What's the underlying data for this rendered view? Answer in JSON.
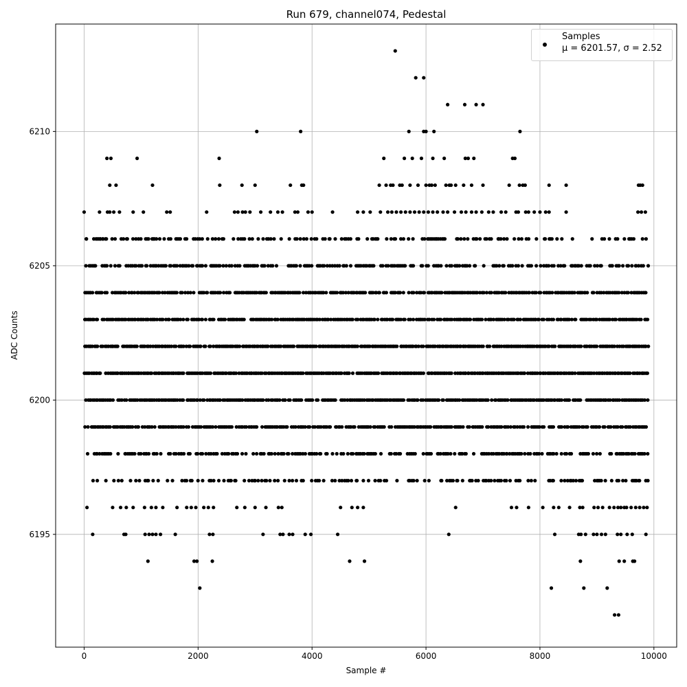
{
  "chart_data": {
    "type": "scatter",
    "title": "Run 679, channel074, Pedestal",
    "xlabel": "Sample #",
    "ylabel": "ADC Counts",
    "xlim": [
      -500,
      10400
    ],
    "ylim": [
      6190.8,
      6214.0
    ],
    "xticks": [
      0,
      2000,
      4000,
      6000,
      8000,
      10000
    ],
    "xtick_labels": [
      "0",
      "2000",
      "4000",
      "6000",
      "8000",
      "10000"
    ],
    "yticks": [
      6195,
      6200,
      6205,
      6210
    ],
    "ytick_labels": [
      "6195",
      "6200",
      "6205",
      "6210"
    ],
    "grid": true,
    "legend": {
      "placement": "top-right",
      "series_name": "Samples",
      "stats_label": "μ = 6201.57, σ = 2.52"
    },
    "marker_color": "#000000",
    "series": [
      {
        "name": "Samples",
        "points": [
          [
            0,
            6207
          ],
          [
            40,
            6206
          ],
          [
            90,
            6205
          ],
          [
            170,
            6206
          ],
          [
            230,
            6206
          ],
          [
            280,
            6206
          ],
          [
            330,
            6206
          ],
          [
            390,
            6206
          ],
          [
            270,
            6207
          ],
          [
            410,
            6207
          ],
          [
            450,
            6207
          ],
          [
            520,
            6207
          ],
          [
            620,
            6207
          ],
          [
            860,
            6207
          ],
          [
            1040,
            6207
          ],
          [
            1450,
            6207
          ],
          [
            1510,
            6207
          ],
          [
            2150,
            6207
          ],
          [
            2640,
            6207
          ],
          [
            2700,
            6207
          ],
          [
            2780,
            6207
          ],
          [
            2830,
            6207
          ],
          [
            2910,
            6207
          ],
          [
            3100,
            6207
          ],
          [
            3270,
            6207
          ],
          [
            3400,
            6207
          ],
          [
            3480,
            6207
          ],
          [
            3700,
            6207
          ],
          [
            3750,
            6207
          ],
          [
            3930,
            6207
          ],
          [
            4000,
            6207
          ],
          [
            4360,
            6207
          ],
          [
            4800,
            6207
          ],
          [
            4900,
            6207
          ],
          [
            5020,
            6207
          ],
          [
            5200,
            6207
          ],
          [
            5330,
            6207
          ],
          [
            5400,
            6207
          ],
          [
            5480,
            6207
          ],
          [
            5560,
            6207
          ],
          [
            5640,
            6207
          ],
          [
            5720,
            6207
          ],
          [
            5800,
            6207
          ],
          [
            5880,
            6207
          ],
          [
            5960,
            6207
          ],
          [
            6040,
            6207
          ],
          [
            6120,
            6207
          ],
          [
            6200,
            6207
          ],
          [
            6300,
            6207
          ],
          [
            6380,
            6207
          ],
          [
            6500,
            6207
          ],
          [
            6620,
            6207
          ],
          [
            6700,
            6207
          ],
          [
            6800,
            6207
          ],
          [
            6880,
            6207
          ],
          [
            6980,
            6207
          ],
          [
            7100,
            6207
          ],
          [
            7180,
            6207
          ],
          [
            7320,
            6207
          ],
          [
            7400,
            6207
          ],
          [
            7580,
            6207
          ],
          [
            7620,
            6207
          ],
          [
            7750,
            6207
          ],
          [
            7800,
            6207
          ],
          [
            7900,
            6207
          ],
          [
            8000,
            6207
          ],
          [
            8100,
            6207
          ],
          [
            8160,
            6207
          ],
          [
            8460,
            6207
          ],
          [
            9720,
            6207
          ],
          [
            9780,
            6207
          ],
          [
            9850,
            6207
          ],
          [
            400,
            6209
          ],
          [
            450,
            6208
          ],
          [
            470,
            6209
          ],
          [
            560,
            6208
          ],
          [
            930,
            6209
          ],
          [
            1200,
            6208
          ],
          [
            2370,
            6209
          ],
          [
            2380,
            6208
          ],
          [
            2770,
            6208
          ],
          [
            3000,
            6208
          ],
          [
            3620,
            6208
          ],
          [
            3820,
            6208
          ],
          [
            3850,
            6208
          ],
          [
            5180,
            6208
          ],
          [
            5260,
            6209
          ],
          [
            5300,
            6208
          ],
          [
            5380,
            6208
          ],
          [
            5420,
            6208
          ],
          [
            5540,
            6208
          ],
          [
            5580,
            6208
          ],
          [
            5620,
            6209
          ],
          [
            5720,
            6208
          ],
          [
            5760,
            6209
          ],
          [
            5860,
            6208
          ],
          [
            5920,
            6209
          ],
          [
            6000,
            6208
          ],
          [
            6060,
            6208
          ],
          [
            6100,
            6208
          ],
          [
            6120,
            6209
          ],
          [
            6160,
            6208
          ],
          [
            6320,
            6209
          ],
          [
            6350,
            6208
          ],
          [
            6410,
            6208
          ],
          [
            6440,
            6208
          ],
          [
            6520,
            6208
          ],
          [
            6660,
            6208
          ],
          [
            6690,
            6209
          ],
          [
            6740,
            6209
          ],
          [
            6800,
            6208
          ],
          [
            6840,
            6209
          ],
          [
            7000,
            6208
          ],
          [
            7460,
            6208
          ],
          [
            7520,
            6209
          ],
          [
            7560,
            6209
          ],
          [
            7640,
            6208
          ],
          [
            7700,
            6208
          ],
          [
            7740,
            6208
          ],
          [
            8160,
            6208
          ],
          [
            8460,
            6208
          ],
          [
            9730,
            6208
          ],
          [
            9760,
            6208
          ],
          [
            9800,
            6208
          ],
          [
            3030,
            6210
          ],
          [
            3800,
            6210
          ],
          [
            5700,
            6210
          ],
          [
            5960,
            6210
          ],
          [
            6000,
            6210
          ],
          [
            6140,
            6210
          ],
          [
            7650,
            6210
          ],
          [
            6380,
            6211
          ],
          [
            6680,
            6211
          ],
          [
            6880,
            6211
          ],
          [
            7000,
            6211
          ],
          [
            5820,
            6212
          ],
          [
            5960,
            6212
          ],
          [
            5460,
            6213
          ],
          [
            50,
            6196
          ],
          [
            500,
            6196
          ],
          [
            640,
            6196
          ],
          [
            740,
            6196
          ],
          [
            860,
            6196
          ],
          [
            1060,
            6196
          ],
          [
            1180,
            6196
          ],
          [
            1260,
            6196
          ],
          [
            1380,
            6196
          ],
          [
            1630,
            6196
          ],
          [
            1800,
            6196
          ],
          [
            1880,
            6196
          ],
          [
            1960,
            6196
          ],
          [
            2100,
            6196
          ],
          [
            2180,
            6196
          ],
          [
            2270,
            6196
          ],
          [
            2680,
            6196
          ],
          [
            2820,
            6196
          ],
          [
            3000,
            6196
          ],
          [
            3190,
            6196
          ],
          [
            3410,
            6196
          ],
          [
            3470,
            6196
          ],
          [
            4500,
            6196
          ],
          [
            4700,
            6196
          ],
          [
            4800,
            6196
          ],
          [
            4900,
            6196
          ],
          [
            6520,
            6196
          ],
          [
            7500,
            6196
          ],
          [
            7590,
            6196
          ],
          [
            7800,
            6196
          ],
          [
            8050,
            6196
          ],
          [
            8240,
            6196
          ],
          [
            8330,
            6196
          ],
          [
            8520,
            6196
          ],
          [
            8700,
            6196
          ],
          [
            8750,
            6196
          ],
          [
            8950,
            6196
          ],
          [
            9020,
            6196
          ],
          [
            9100,
            6196
          ],
          [
            9220,
            6196
          ],
          [
            9300,
            6196
          ],
          [
            9370,
            6196
          ],
          [
            9420,
            6196
          ],
          [
            9480,
            6196
          ],
          [
            9520,
            6196
          ],
          [
            9600,
            6196
          ],
          [
            9680,
            6196
          ],
          [
            9750,
            6196
          ],
          [
            9820,
            6196
          ],
          [
            9880,
            6196
          ],
          [
            150,
            6195
          ],
          [
            700,
            6195
          ],
          [
            730,
            6195
          ],
          [
            1070,
            6195
          ],
          [
            1140,
            6195
          ],
          [
            1200,
            6195
          ],
          [
            1260,
            6195
          ],
          [
            1340,
            6195
          ],
          [
            1600,
            6195
          ],
          [
            2200,
            6195
          ],
          [
            2260,
            6195
          ],
          [
            3140,
            6195
          ],
          [
            3440,
            6195
          ],
          [
            3490,
            6195
          ],
          [
            3600,
            6195
          ],
          [
            3660,
            6195
          ],
          [
            3880,
            6195
          ],
          [
            3980,
            6195
          ],
          [
            4450,
            6195
          ],
          [
            6400,
            6195
          ],
          [
            8260,
            6195
          ],
          [
            8680,
            6195
          ],
          [
            8720,
            6195
          ],
          [
            8800,
            6195
          ],
          [
            8940,
            6195
          ],
          [
            9000,
            6195
          ],
          [
            9080,
            6195
          ],
          [
            9150,
            6195
          ],
          [
            9360,
            6195
          ],
          [
            9420,
            6195
          ],
          [
            9530,
            6195
          ],
          [
            9620,
            6195
          ],
          [
            9860,
            6195
          ],
          [
            1120,
            6194
          ],
          [
            1930,
            6194
          ],
          [
            1980,
            6194
          ],
          [
            2250,
            6194
          ],
          [
            4660,
            6194
          ],
          [
            4920,
            6194
          ],
          [
            8710,
            6194
          ],
          [
            9390,
            6194
          ],
          [
            9480,
            6194
          ],
          [
            9630,
            6194
          ],
          [
            9660,
            6194
          ],
          [
            2030,
            6193
          ],
          [
            8200,
            6193
          ],
          [
            8770,
            6193
          ],
          [
            9180,
            6193
          ],
          [
            9310,
            6192
          ],
          [
            9380,
            6192
          ]
        ]
      }
    ]
  }
}
